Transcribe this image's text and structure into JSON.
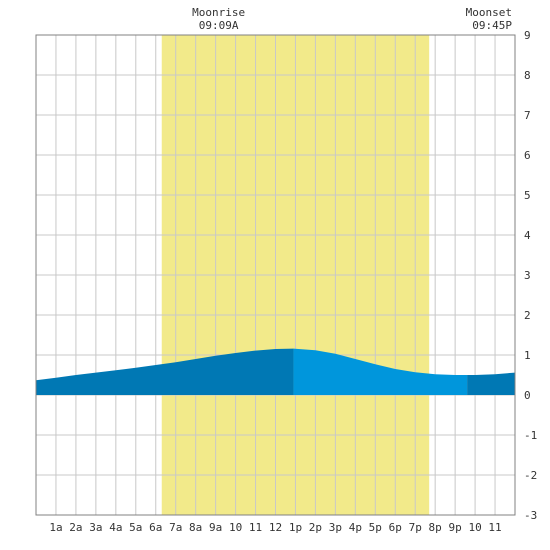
{
  "chart_data": {
    "type": "area",
    "x_tick_labels": [
      "1a",
      "2a",
      "3a",
      "4a",
      "5a",
      "6a",
      "7a",
      "8a",
      "9a",
      "10",
      "11",
      "12",
      "1p",
      "2p",
      "3p",
      "4p",
      "5p",
      "6p",
      "7p",
      "8p",
      "9p",
      "10",
      "11"
    ],
    "x_ticks_hours": [
      1,
      2,
      3,
      4,
      5,
      6,
      7,
      8,
      9,
      10,
      11,
      12,
      13,
      14,
      15,
      16,
      17,
      18,
      19,
      20,
      21,
      22,
      23
    ],
    "xlim_hours": [
      0,
      24
    ],
    "ylim": [
      -3,
      9
    ],
    "y_ticks": [
      9,
      8,
      7,
      6,
      5,
      4,
      3,
      2,
      1,
      0,
      -1,
      -2,
      -3
    ],
    "grid": true,
    "daylight_hours": [
      6.3,
      19.7
    ],
    "tide_series": {
      "x_hours": [
        0,
        1,
        2,
        3,
        4,
        5,
        6,
        7,
        8,
        9,
        10,
        11,
        12,
        12.9,
        14,
        15,
        16,
        17,
        18,
        19,
        20,
        21,
        22,
        23,
        24
      ],
      "y": [
        0.37,
        0.43,
        0.5,
        0.56,
        0.62,
        0.68,
        0.75,
        0.82,
        0.9,
        0.98,
        1.05,
        1.11,
        1.15,
        1.16,
        1.12,
        1.03,
        0.9,
        0.77,
        0.65,
        0.57,
        0.52,
        0.5,
        0.5,
        0.52,
        0.56
      ]
    },
    "annotations": [
      {
        "label": "Moonrise",
        "time": "09:09A",
        "x_hours": 9.15
      },
      {
        "label": "Moonset",
        "time": "09:45P",
        "x_hours": 21.75
      }
    ],
    "colors": {
      "daylight": "#f2ea8a",
      "tide_dark": "#0078b4",
      "tide_light": "#0096dc",
      "grid": "#c8c8c8",
      "frame": "#808080"
    }
  }
}
